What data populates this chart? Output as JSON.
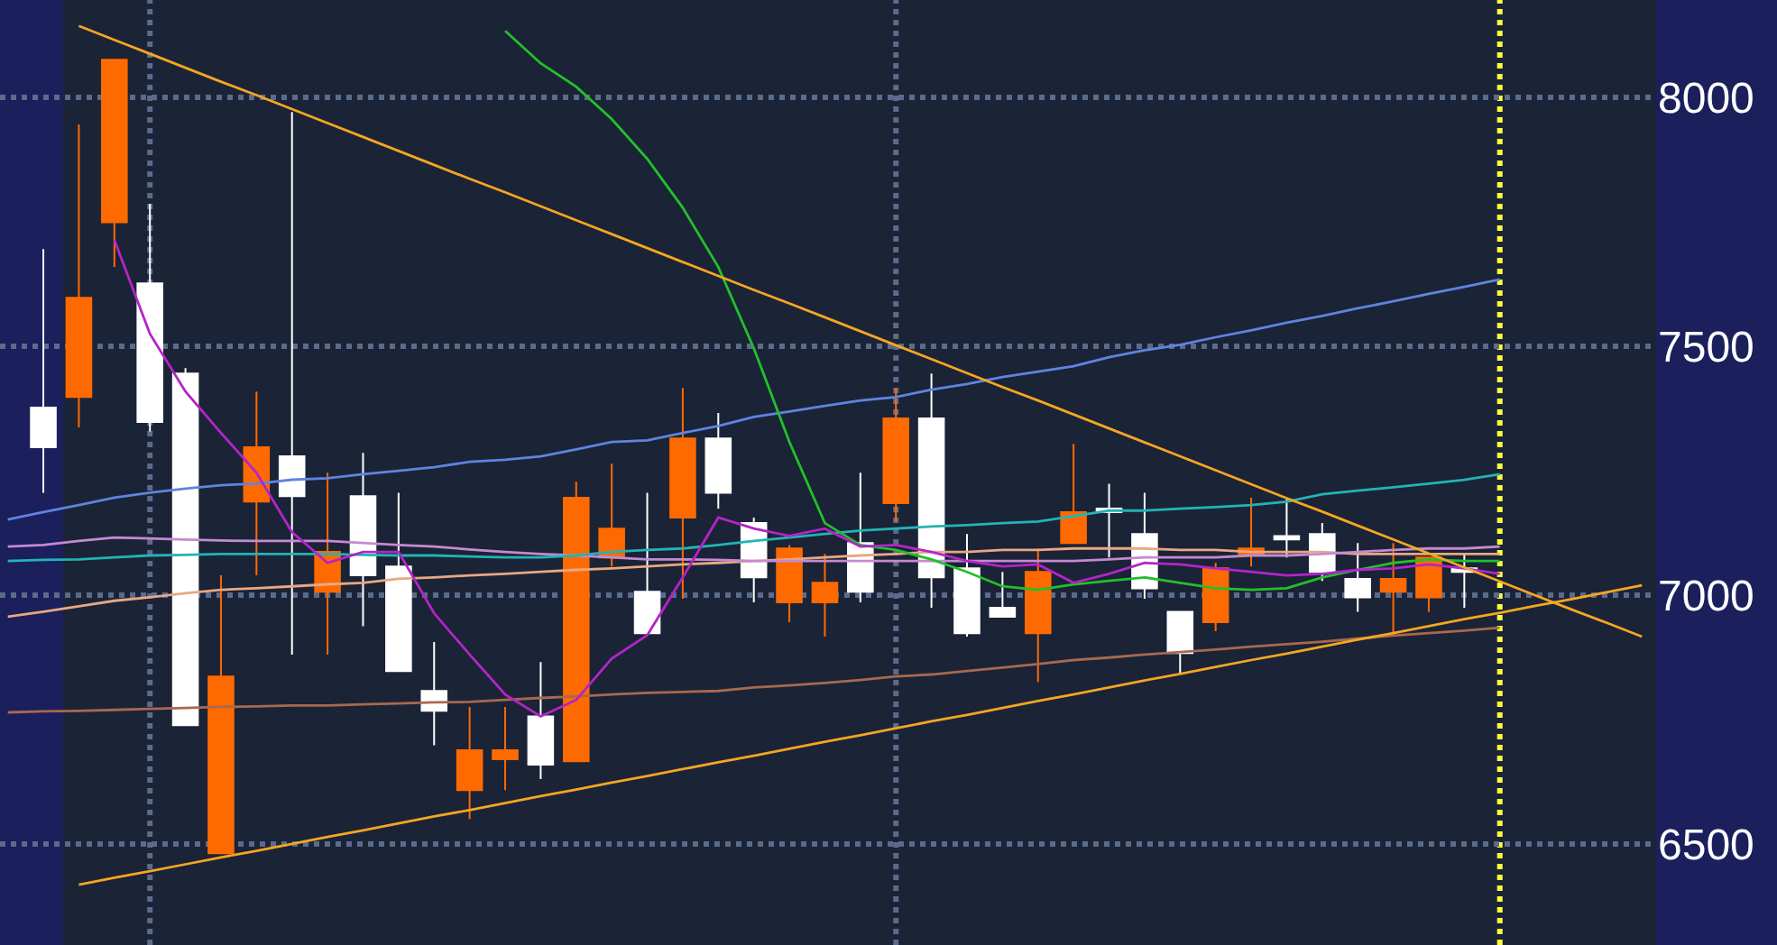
{
  "chart_data": {
    "type": "candlestick",
    "categories": [
      null,
      null,
      null,
      null,
      null,
      null,
      null,
      null,
      null,
      null,
      null,
      null,
      null,
      null,
      null,
      null,
      null,
      null,
      null,
      null,
      null,
      null,
      null,
      null,
      null,
      null,
      null,
      null,
      null,
      null,
      null,
      null,
      null,
      null,
      null,
      null,
      null,
      null,
      null,
      null,
      null,
      null,
      null,
      null,
      null,
      null,
      null
    ],
    "ohlc": [
      null,
      [
        7377,
        7695,
        7206,
        7297
      ],
      [
        7398,
        7945,
        7337,
        7597
      ],
      [
        7749,
        8075,
        7659,
        8075
      ],
      [
        7626,
        7786,
        7329,
        7348
      ],
      [
        7445,
        7456,
        6739,
        6739
      ],
      [
        6482,
        7040,
        6482,
        6837
      ],
      [
        7188,
        7409,
        7040,
        7297
      ],
      [
        7279,
        7970,
        6881,
        7199
      ],
      [
        7007,
        7246,
        6881,
        7087
      ],
      [
        7199,
        7286,
        6938,
        7040
      ],
      [
        7058,
        7206,
        6848,
        6848
      ],
      [
        6808,
        6906,
        6699,
        6768
      ],
      [
        6609,
        6776,
        6551,
        6689
      ],
      [
        6671,
        6776,
        6609,
        6689
      ],
      [
        6757,
        6866,
        6631,
        6660
      ],
      [
        6667,
        7228,
        6667,
        7196
      ],
      [
        7076,
        7264,
        7058,
        7134
      ],
      [
        7007,
        7206,
        6924,
        6924
      ],
      [
        7156,
        7416,
        6993,
        7315
      ],
      [
        7315,
        7366,
        7174,
        7206
      ],
      [
        7145,
        7156,
        6986,
        7036
      ],
      [
        6986,
        7101,
        6946,
        7094
      ],
      [
        6986,
        7083,
        6917,
        7025
      ],
      [
        7105,
        7246,
        6986,
        7007
      ],
      [
        7185,
        7416,
        7148,
        7355
      ],
      [
        7355,
        7445,
        6975,
        7036
      ],
      [
        7054,
        7123,
        6917,
        6924
      ],
      [
        6975,
        7047,
        6957,
        6957
      ],
      [
        6924,
        7094,
        6826,
        7047
      ],
      [
        7105,
        7304,
        7105,
        7167
      ],
      [
        7174,
        7224,
        7076,
        7167
      ],
      [
        7123,
        7206,
        6993,
        7014
      ],
      [
        6967,
        6967,
        6844,
        6884
      ],
      [
        6946,
        7065,
        6928,
        7054
      ],
      [
        7083,
        7196,
        7058,
        7094
      ],
      [
        7119,
        7192,
        7076,
        7112
      ],
      [
        7123,
        7145,
        7029,
        7047
      ],
      [
        7033,
        7105,
        6967,
        6996
      ],
      [
        7007,
        7105,
        6917,
        7033
      ],
      [
        6996,
        7076,
        6967,
        7076
      ],
      [
        7054,
        7083,
        6975,
        7047
      ],
      null,
      null,
      null,
      null,
      null
    ],
    "colors": [
      null,
      "#ffffff",
      "#ff6a00",
      "#ff6a00",
      "#ffffff",
      "#ffffff",
      "#ff6a00",
      "#ff6a00",
      "#ffffff",
      "#ff6a00",
      "#ffffff",
      "#ffffff",
      "#ffffff",
      "#ff6a00",
      "#ff6a00",
      "#ffffff",
      "#ff6a00",
      "#ff6a00",
      "#ffffff",
      "#ff6a00",
      "#ffffff",
      "#ffffff",
      "#ff6a00",
      "#ff6a00",
      "#ffffff",
      "#ff6a00",
      "#ffffff",
      "#ffffff",
      "#ffffff",
      "#ff6a00",
      "#ff6a00",
      "#ffffff",
      "#ffffff",
      "#ffffff",
      "#ff6a00",
      "#ff6a00",
      "#ffffff",
      "#ffffff",
      "#ffffff",
      "#ff6a00",
      "#ff6a00",
      "#ffffff",
      null,
      null,
      null,
      null,
      null
    ],
    "series": [
      {
        "type": "line",
        "color": "#a8694e",
        "values": [
          6765,
          6767,
          6768,
          6770,
          6772,
          6774,
          6776,
          6777,
          6779,
          6779,
          6781,
          6783,
          6785,
          6786,
          6790,
          6794,
          6797,
          6801,
          6804,
          6806,
          6808,
          6815,
          6819,
          6824,
          6830,
          6837,
          6841,
          6848,
          6855,
          6862,
          6870,
          6875,
          6881,
          6886,
          6891,
          6897,
          6902,
          6907,
          6913,
          6919,
          6924,
          6929,
          6935,
          null,
          null,
          null,
          null
        ]
      },
      {
        "type": "line",
        "color": "#e8a882",
        "values": [
          6957,
          6967,
          6978,
          6989,
          6996,
          7004,
          7011,
          7014,
          7018,
          7022,
          7025,
          7033,
          7036,
          7040,
          7043,
          7047,
          7051,
          7054,
          7058,
          7062,
          7065,
          7069,
          7072,
          7076,
          7080,
          7083,
          7087,
          7087,
          7091,
          7091,
          7094,
          7094,
          7094,
          7091,
          7091,
          7087,
          7087,
          7087,
          7083,
          7083,
          7083,
          7083,
          7083,
          null,
          null,
          null,
          null
        ]
      },
      {
        "type": "line",
        "color": "#c58ad0",
        "values": [
          7098,
          7101,
          7109,
          7116,
          7114,
          7112,
          7110,
          7109,
          7109,
          7109,
          7105,
          7101,
          7098,
          7092,
          7087,
          7083,
          7080,
          7076,
          7072,
          7072,
          7071,
          7069,
          7069,
          7069,
          7069,
          7069,
          7069,
          7069,
          7069,
          7069,
          7069,
          7072,
          7076,
          7076,
          7076,
          7080,
          7080,
          7083,
          7087,
          7091,
          7094,
          7094,
          7098,
          null,
          null,
          null,
          null
        ]
      },
      {
        "type": "line",
        "color": "#22b4b4",
        "values": [
          7069,
          7071,
          7072,
          7076,
          7080,
          7081,
          7083,
          7083,
          7083,
          7083,
          7081,
          7080,
          7080,
          7078,
          7076,
          7076,
          7080,
          7087,
          7091,
          7094,
          7101,
          7109,
          7116,
          7123,
          7130,
          7134,
          7138,
          7141,
          7145,
          7148,
          7159,
          7170,
          7170,
          7174,
          7177,
          7181,
          7188,
          7203,
          7210,
          7217,
          7224,
          7232,
          7243,
          null,
          null,
          null,
          null
        ]
      },
      {
        "type": "line",
        "color": "#5f84e0",
        "values": [
          7152,
          7167,
          7181,
          7196,
          7206,
          7214,
          7221,
          7224,
          7232,
          7235,
          7243,
          7250,
          7257,
          7268,
          7272,
          7279,
          7293,
          7308,
          7311,
          7326,
          7340,
          7358,
          7369,
          7380,
          7391,
          7398,
          7413,
          7424,
          7438,
          7449,
          7460,
          7478,
          7492,
          7503,
          7518,
          7532,
          7547,
          7561,
          7576,
          7590,
          7605,
          7619,
          7634,
          null,
          null,
          null,
          null
        ]
      },
      {
        "type": "line",
        "color": "#22c02a",
        "values": [
          null,
          null,
          null,
          null,
          null,
          null,
          null,
          null,
          null,
          null,
          null,
          null,
          null,
          null,
          8133,
          8068,
          8021,
          7956,
          7876,
          7778,
          7659,
          7496,
          7308,
          7145,
          7101,
          7091,
          7072,
          7047,
          7018,
          7011,
          7022,
          7029,
          7036,
          7025,
          7014,
          7011,
          7014,
          7036,
          7051,
          7065,
          7072,
          7069,
          7069,
          null,
          null,
          null,
          null
        ]
      },
      {
        "type": "line",
        "color": "#b424c8",
        "values": [
          null,
          null,
          null,
          7713,
          7525,
          7409,
          7326,
          7246,
          7127,
          7065,
          7087,
          7087,
          6964,
          6881,
          6801,
          6757,
          6790,
          6873,
          6920,
          7036,
          7156,
          7134,
          7119,
          7134,
          7098,
          7101,
          7087,
          7069,
          7058,
          7062,
          7025,
          7043,
          7065,
          7062,
          7054,
          7047,
          7040,
          7043,
          7051,
          7054,
          7062,
          7054,
          7043,
          null,
          null,
          null,
          null
        ]
      },
      {
        "type": "line",
        "color": "#f5a623",
        "values": [
          null,
          null,
          8143,
          8115,
          8087,
          8059,
          8031,
          8004,
          7976,
          7948,
          7920,
          7892,
          7864,
          7836,
          7809,
          7781,
          7753,
          7725,
          7697,
          7669,
          7641,
          7613,
          7586,
          7558,
          7530,
          7502,
          7474,
          7446,
          7418,
          7391,
          7363,
          7335,
          7307,
          7279,
          7251,
          7223,
          7195,
          7168,
          7140,
          7112,
          7084,
          7056,
          7028,
          7000,
          6972,
          6945,
          6917
        ]
      },
      {
        "type": "line",
        "color": "#f5a623",
        "values": [
          null,
          null,
          6419,
          6433,
          6446,
          6460,
          6474,
          6487,
          6501,
          6515,
          6528,
          6542,
          6556,
          6569,
          6583,
          6597,
          6610,
          6624,
          6637,
          6651,
          6665,
          6678,
          6692,
          6706,
          6719,
          6733,
          6747,
          6760,
          6774,
          6788,
          6801,
          6815,
          6829,
          6842,
          6856,
          6870,
          6883,
          6897,
          6911,
          6924,
          6938,
          6952,
          6965,
          6979,
          6992,
          7006,
          7020
        ]
      }
    ],
    "ylim": [
      6298,
      8195
    ],
    "yticks": [
      6500,
      7000,
      7500,
      8000
    ],
    "grid": "y",
    "tick_labels": "y"
  }
}
